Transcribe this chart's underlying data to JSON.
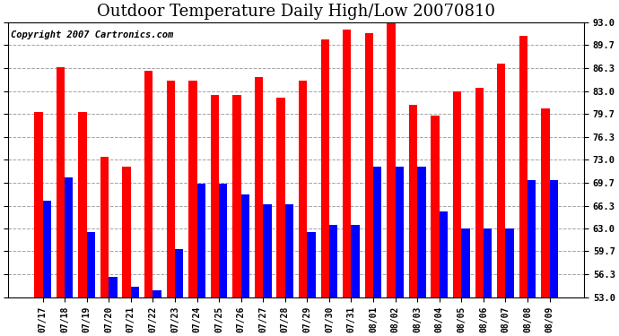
{
  "title": "Outdoor Temperature Daily High/Low 20070810",
  "copyright": "Copyright 2007 Cartronics.com",
  "dates": [
    "07/17",
    "07/18",
    "07/19",
    "07/20",
    "07/21",
    "07/22",
    "07/23",
    "07/24",
    "07/25",
    "07/26",
    "07/27",
    "07/28",
    "07/29",
    "07/30",
    "07/31",
    "08/01",
    "08/02",
    "08/03",
    "08/04",
    "08/05",
    "08/06",
    "08/07",
    "08/08",
    "08/09"
  ],
  "highs": [
    80.0,
    86.5,
    80.0,
    73.5,
    72.0,
    86.0,
    84.5,
    84.5,
    82.5,
    82.5,
    85.0,
    82.0,
    84.5,
    90.5,
    92.0,
    91.5,
    93.0,
    81.0,
    79.5,
    83.0,
    83.5,
    87.0,
    91.0,
    80.5
  ],
  "lows": [
    67.0,
    70.5,
    62.5,
    56.0,
    54.5,
    54.0,
    60.0,
    69.5,
    69.5,
    68.0,
    66.5,
    66.5,
    62.5,
    63.5,
    63.5,
    72.0,
    72.0,
    72.0,
    65.5,
    63.0,
    63.0,
    63.0,
    70.0,
    70.0
  ],
  "high_color": "#FF0000",
  "low_color": "#0000FF",
  "background_color": "#FFFFFF",
  "plot_background": "#FFFFFF",
  "grid_color": "#999999",
  "ymin": 53.0,
  "ymax": 93.0,
  "yticks": [
    53.0,
    56.3,
    59.7,
    63.0,
    66.3,
    69.7,
    73.0,
    76.3,
    79.7,
    83.0,
    86.3,
    89.7,
    93.0
  ],
  "title_fontsize": 13,
  "copyright_fontsize": 7.5
}
